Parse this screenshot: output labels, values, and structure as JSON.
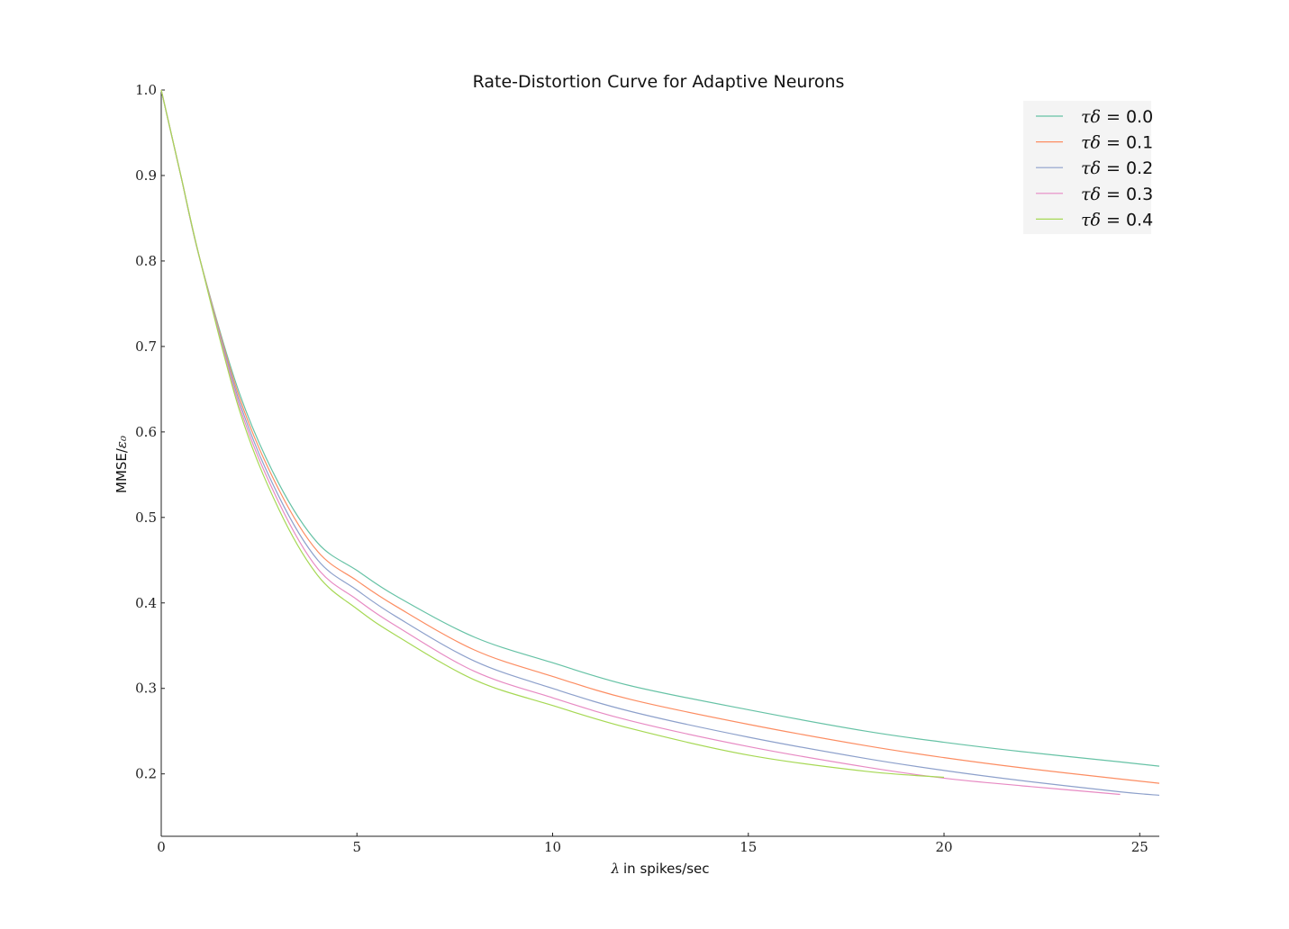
{
  "chart_data": {
    "type": "line",
    "title": "Rate-Distortion Curve for Adaptive Neurons",
    "xlabel": "λ in spikes/sec",
    "xlabel_math": "λ",
    "xlabel_text": "in spikes/sec",
    "ylabel": "MMSE/ε₀",
    "ylabel_text": "MMSE/",
    "ylabel_math": "ε₀",
    "xlim": [
      0,
      25.5
    ],
    "ylim": [
      0.127,
      1.0
    ],
    "xticks": [
      0,
      5,
      10,
      15,
      20,
      25
    ],
    "xtick_labels": [
      "0",
      "5",
      "10",
      "15",
      "20",
      "25"
    ],
    "yticks": [
      0.2,
      0.3,
      0.4,
      0.5,
      0.6,
      0.7,
      0.8,
      0.9,
      1.0
    ],
    "ytick_labels": [
      "0.2",
      "0.3",
      "0.4",
      "0.5",
      "0.6",
      "0.7",
      "0.8",
      "0.9",
      "1.0"
    ],
    "grid": false,
    "legend_position": "top-right",
    "x": [
      0,
      0.5,
      1,
      2,
      3,
      4,
      5,
      6,
      8,
      10,
      12,
      15,
      18,
      20,
      22,
      24.5,
      25.5
    ],
    "series": [
      {
        "name": "τδ = 0.0",
        "legend_math": "τδ",
        "legend_value": " = 0.0",
        "color": "#66c2a5",
        "values": [
          1.0,
          0.9,
          0.8,
          0.645,
          0.54,
          0.47,
          0.438,
          0.408,
          0.36,
          0.33,
          0.303,
          0.275,
          0.25,
          0.237,
          0.226,
          0.214,
          0.209
        ]
      },
      {
        "name": "τδ = 0.1",
        "legend_math": "τδ",
        "legend_value": " = 0.1",
        "color": "#fc8d62",
        "values": [
          1.0,
          0.9,
          0.8,
          0.64,
          0.533,
          0.46,
          0.426,
          0.396,
          0.345,
          0.314,
          0.287,
          0.258,
          0.233,
          0.219,
          0.207,
          0.194,
          0.189
        ]
      },
      {
        "name": "τδ = 0.2",
        "legend_math": "τδ",
        "legend_value": " = 0.2",
        "color": "#8da0cb",
        "values": [
          1.0,
          0.9,
          0.8,
          0.635,
          0.525,
          0.45,
          0.415,
          0.384,
          0.332,
          0.3,
          0.273,
          0.243,
          0.218,
          0.204,
          0.192,
          0.179,
          0.175
        ]
      },
      {
        "name": "τδ = 0.3",
        "legend_math": "τδ",
        "legend_value": " = 0.3",
        "color": "#e78ac3",
        "values": [
          1.0,
          0.9,
          0.8,
          0.63,
          0.518,
          0.44,
          0.404,
          0.373,
          0.32,
          0.289,
          0.262,
          0.232,
          0.208,
          0.195,
          0.186,
          0.176,
          null
        ]
      },
      {
        "name": "τδ = 0.4",
        "legend_math": "τδ",
        "legend_value": " = 0.4",
        "color": "#a6d854",
        "values": [
          1.0,
          0.9,
          0.8,
          0.625,
          0.51,
          0.432,
          0.393,
          0.362,
          0.31,
          0.28,
          0.253,
          0.222,
          0.203,
          0.196,
          null,
          null,
          null
        ]
      }
    ]
  }
}
